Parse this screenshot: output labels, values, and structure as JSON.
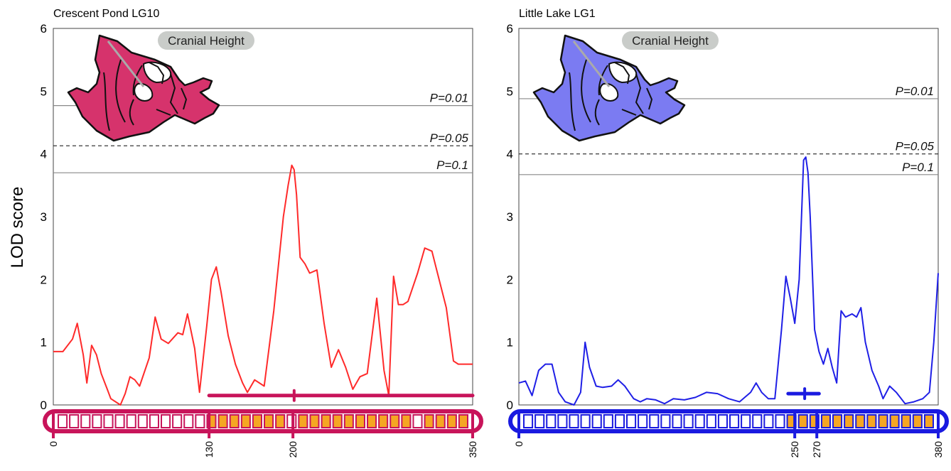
{
  "ylabel": "LOD score",
  "colors": {
    "ref_line": "#888888",
    "frame": "#444444",
    "marker_fill": "#f5a623"
  },
  "chart_data": [
    {
      "type": "line",
      "title": "Crescent Pond LG10",
      "trait_label": "Cranial Height",
      "fish_icon": "fish-skull-icon",
      "color_line": "#ff2a2a",
      "color_accent": "#c8145a",
      "color_fish": "#d6336c",
      "ylim": [
        0,
        6
      ],
      "yticks": [
        0,
        1,
        2,
        3,
        4,
        5,
        6
      ],
      "xlim": [
        0,
        350
      ],
      "xticks": [
        0,
        130,
        200,
        350
      ],
      "thresholds": [
        {
          "label": "P=0.01",
          "value": 4.77,
          "style": "solid"
        },
        {
          "label": "P=0.05",
          "value": 4.13,
          "style": "dashed"
        },
        {
          "label": "P=0.1",
          "value": 3.7,
          "style": "solid"
        }
      ],
      "confidence_interval": {
        "low": 130,
        "peak": 201,
        "high": 350,
        "y": 0.15
      },
      "markers": {
        "count": 36,
        "filled_from": 130,
        "filled_to": 350,
        "unfilled_in_range": [
          200,
          310
        ]
      },
      "x": [
        0,
        8,
        16,
        20,
        25,
        28,
        32,
        36,
        40,
        45,
        48,
        56,
        60,
        64,
        68,
        72,
        80,
        85,
        90,
        96,
        104,
        108,
        112,
        118,
        122,
        128,
        132,
        136,
        140,
        146,
        152,
        158,
        162,
        168,
        176,
        184,
        192,
        196,
        199,
        201,
        203,
        206,
        210,
        214,
        220,
        226,
        232,
        238,
        244,
        250,
        256,
        262,
        270,
        276,
        280,
        284,
        288,
        292,
        296,
        304,
        310,
        316,
        320,
        328,
        334,
        338,
        345,
        350
      ],
      "y": [
        0.85,
        0.85,
        1.05,
        1.3,
        0.8,
        0.35,
        0.95,
        0.8,
        0.5,
        0.25,
        0.1,
        0.0,
        0.18,
        0.45,
        0.4,
        0.3,
        0.75,
        1.4,
        1.05,
        0.98,
        1.15,
        1.12,
        1.45,
        0.9,
        0.2,
        1.25,
        2.0,
        2.2,
        1.8,
        1.1,
        0.65,
        0.35,
        0.2,
        0.4,
        0.3,
        1.5,
        3.0,
        3.5,
        3.82,
        3.75,
        3.35,
        2.35,
        2.25,
        2.1,
        2.15,
        1.3,
        0.6,
        0.88,
        0.6,
        0.25,
        0.45,
        0.5,
        1.7,
        0.55,
        0.15,
        2.05,
        1.6,
        1.6,
        1.65,
        2.1,
        2.5,
        2.45,
        2.15,
        1.55,
        0.7,
        0.65,
        0.65,
        0.65
      ]
    },
    {
      "type": "line",
      "title": "Little Lake LG1",
      "trait_label": "Cranial Height",
      "fish_icon": "fish-skull-icon",
      "color_line": "#1f1fe6",
      "color_accent": "#1a1ae0",
      "color_fish": "#7b7bf2",
      "ylim": [
        0,
        6
      ],
      "yticks": [
        0,
        1,
        2,
        3,
        4,
        5,
        6
      ],
      "xlim": [
        0,
        380
      ],
      "xticks": [
        0,
        250,
        270,
        380
      ],
      "thresholds": [
        {
          "label": "P=0.01",
          "value": 4.88,
          "style": "solid"
        },
        {
          "label": "P=0.05",
          "value": 4.0,
          "style": "dashed"
        },
        {
          "label": "P=0.1",
          "value": 3.67,
          "style": "solid"
        }
      ],
      "confidence_interval": {
        "low": 244,
        "peak": 259,
        "high": 272,
        "y": 0.18
      },
      "markers": {
        "count": 36,
        "filled_from": 244,
        "filled_to": 380,
        "unfilled_in_range": []
      },
      "x": [
        0,
        6,
        12,
        18,
        24,
        30,
        36,
        42,
        50,
        56,
        60,
        64,
        70,
        76,
        84,
        90,
        96,
        104,
        110,
        116,
        124,
        132,
        140,
        150,
        160,
        170,
        180,
        190,
        200,
        210,
        215,
        220,
        226,
        232,
        238,
        242,
        246,
        250,
        254,
        258,
        260,
        262,
        264,
        268,
        272,
        276,
        280,
        284,
        288,
        292,
        296,
        302,
        306,
        310,
        314,
        320,
        326,
        330,
        336,
        342,
        350,
        358,
        366,
        372,
        376,
        380
      ],
      "y": [
        0.35,
        0.38,
        0.15,
        0.55,
        0.65,
        0.65,
        0.2,
        0.05,
        0.0,
        0.2,
        1.0,
        0.6,
        0.3,
        0.28,
        0.3,
        0.4,
        0.3,
        0.1,
        0.05,
        0.1,
        0.08,
        0.02,
        0.1,
        0.08,
        0.12,
        0.2,
        0.18,
        0.1,
        0.05,
        0.2,
        0.35,
        0.2,
        0.1,
        0.1,
        1.2,
        2.05,
        1.7,
        1.3,
        2.0,
        3.9,
        3.95,
        3.7,
        3.0,
        1.2,
        0.85,
        0.65,
        0.9,
        0.6,
        0.35,
        1.5,
        1.4,
        1.45,
        1.4,
        1.55,
        1.0,
        0.55,
        0.3,
        0.1,
        0.3,
        0.2,
        0.02,
        0.05,
        0.1,
        0.2,
        1.0,
        2.1
      ]
    }
  ]
}
